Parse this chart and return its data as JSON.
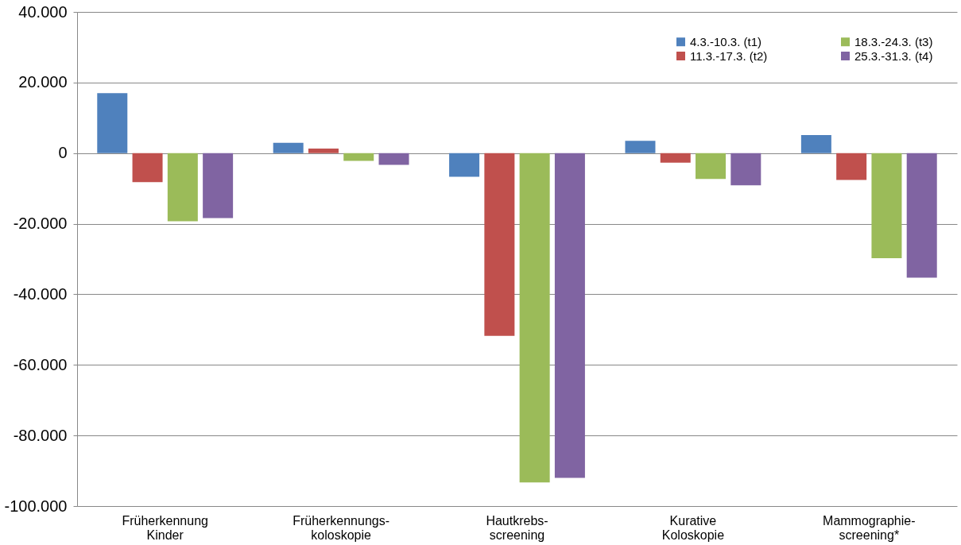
{
  "chart_data": {
    "type": "bar",
    "categories": [
      "Früherkennung\nKinder",
      "Früherkennungs-\nkoloskopie",
      "Hautkrebs-\nscreening",
      "Kurative\nKoloskopie",
      "Mammographie-\nscreening*"
    ],
    "series": [
      {
        "name": "4.3.-10.3. (t1)",
        "color": "#4f81bd",
        "values": [
          17000,
          2900,
          -6700,
          3500,
          5100
        ]
      },
      {
        "name": "11.3.-17.3. (t2)",
        "color": "#c0504d",
        "values": [
          -8200,
          1300,
          -51800,
          -2700,
          -7600
        ]
      },
      {
        "name": "18.3.-24.3. (t3)",
        "color": "#9bbb59",
        "values": [
          -19300,
          -2200,
          -93300,
          -7300,
          -29800
        ]
      },
      {
        "name": "25.3.-31.3. (t4)",
        "color": "#8064a2",
        "values": [
          -18400,
          -3300,
          -92000,
          -9100,
          -35300
        ]
      }
    ],
    "ylim": [
      -100000,
      40000
    ],
    "yticks": [
      {
        "value": -100000,
        "label": "-100.000"
      },
      {
        "value": -80000,
        "label": "-80.000"
      },
      {
        "value": -60000,
        "label": "-60.000"
      },
      {
        "value": -40000,
        "label": "-40.000"
      },
      {
        "value": -20000,
        "label": "-20.000"
      },
      {
        "value": 0,
        "label": "0"
      },
      {
        "value": 20000,
        "label": "20.000"
      },
      {
        "value": 40000,
        "label": "40.000"
      }
    ],
    "grid": "y",
    "legend": "top right"
  }
}
